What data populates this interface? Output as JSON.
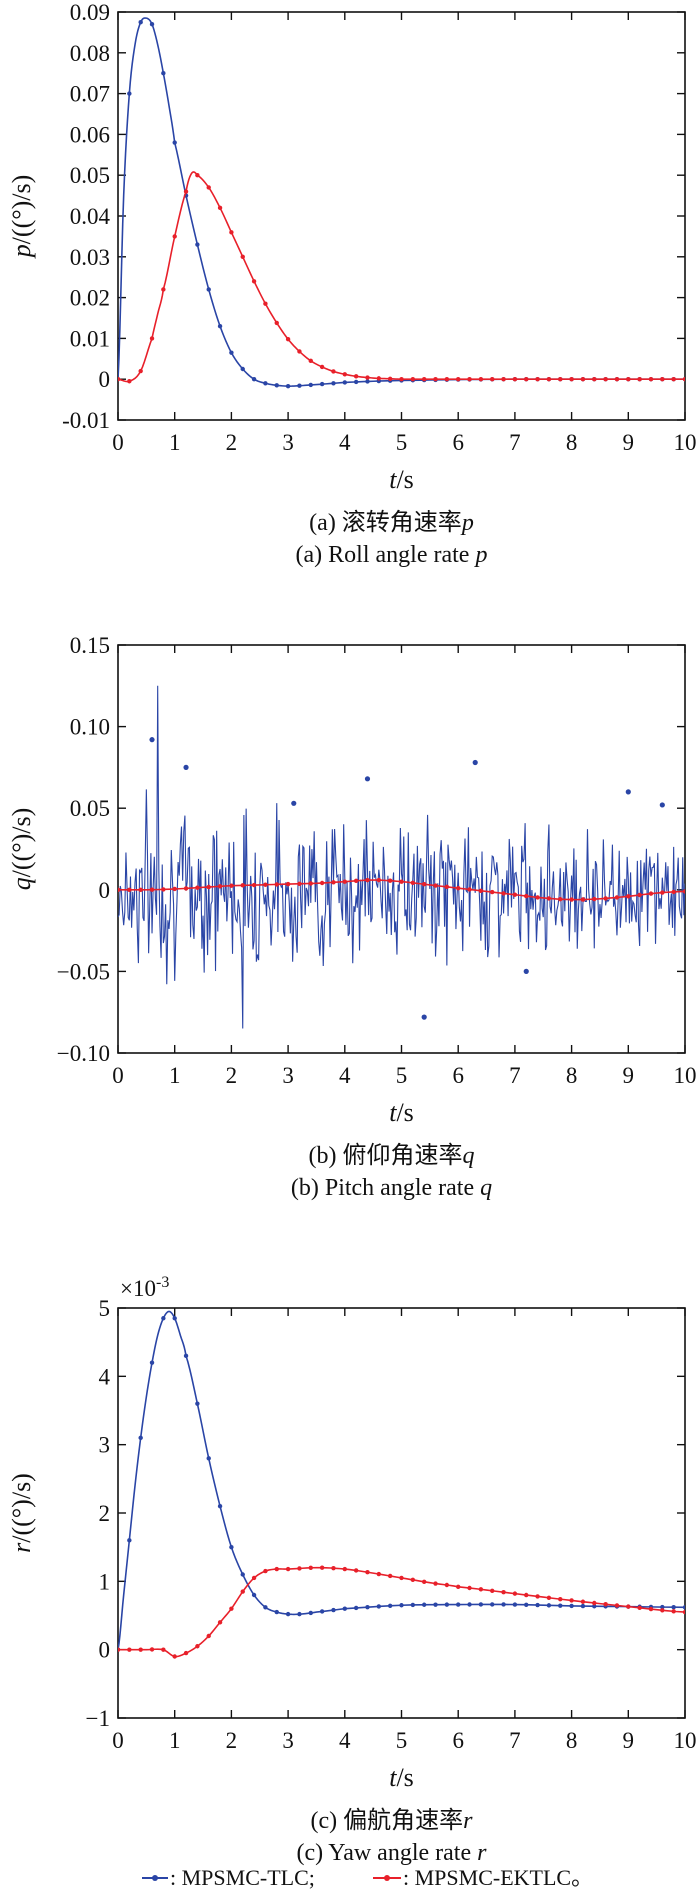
{
  "colors": {
    "tlc": "#2a45a6",
    "ektlc": "#e8202a",
    "axis": "#111111"
  },
  "legend": {
    "tlc_label": ": MPSMC-TLC;",
    "ektlc_label": ": MPSMC-EKTLC。"
  },
  "chart_data": [
    {
      "type": "line",
      "xlabel": "t/s",
      "ylabel": "p/((°)/s)",
      "caption_cn": "(a) 滚转角速率p",
      "caption_en": "(a) Roll angle rate p",
      "xlim": [
        0,
        10
      ],
      "ylim": [
        -0.01,
        0.09
      ],
      "xticks": [
        "0",
        "1",
        "2",
        "3",
        "4",
        "5",
        "6",
        "7",
        "8",
        "9",
        "10"
      ],
      "yticks": [
        "-0.01",
        "0",
        "0.01",
        "0.02",
        "0.03",
        "0.04",
        "0.05",
        "0.06",
        "0.07",
        "0.08",
        "0.09"
      ],
      "series": [
        {
          "name": "MPSMC-TLC",
          "x": [
            0,
            0.1,
            0.2,
            0.3,
            0.4,
            0.5,
            0.6,
            0.7,
            0.8,
            0.9,
            1.0,
            1.2,
            1.4,
            1.6,
            1.8,
            2.0,
            2.2,
            2.4,
            2.6,
            2.8,
            3.0,
            3.2,
            3.4,
            3.6,
            4.0,
            4.5,
            5,
            6,
            7,
            8,
            9,
            10
          ],
          "y": [
            0,
            0.045,
            0.07,
            0.082,
            0.0875,
            0.0885,
            0.087,
            0.082,
            0.075,
            0.067,
            0.058,
            0.045,
            0.033,
            0.022,
            0.013,
            0.0065,
            0.0025,
            0.0,
            -0.001,
            -0.0015,
            -0.0017,
            -0.0016,
            -0.0014,
            -0.0012,
            -0.0008,
            -0.0005,
            -0.0003,
            -0.0001,
            0,
            0,
            0,
            0
          ]
        },
        {
          "name": "MPSMC-EKTLC",
          "x": [
            0,
            0.2,
            0.4,
            0.6,
            0.7,
            0.8,
            1.0,
            1.2,
            1.3,
            1.4,
            1.6,
            1.8,
            2.0,
            2.2,
            2.4,
            2.6,
            2.8,
            3.0,
            3.2,
            3.4,
            3.6,
            3.8,
            4.0,
            4.2,
            4.4,
            4.6,
            4.8,
            5.0,
            5.5,
            6,
            7,
            8,
            9,
            10
          ],
          "y": [
            0,
            -0.0005,
            0.002,
            0.01,
            0.016,
            0.022,
            0.035,
            0.046,
            0.0505,
            0.05,
            0.047,
            0.042,
            0.036,
            0.03,
            0.024,
            0.0185,
            0.0138,
            0.0098,
            0.0068,
            0.0045,
            0.003,
            0.0019,
            0.0012,
            0.0007,
            0.0004,
            0.0002,
            0.0001,
            0.0,
            0,
            0,
            0,
            0,
            0,
            0
          ]
        }
      ]
    },
    {
      "type": "line",
      "xlabel": "t/s",
      "ylabel": "q/((°)/s)",
      "caption_cn": "(b) 俯仰角速率q",
      "caption_en": "(b) Pitch angle rate q",
      "xlim": [
        0,
        10
      ],
      "ylim": [
        -0.1,
        0.15
      ],
      "xticks": [
        "0",
        "1",
        "2",
        "3",
        "4",
        "5",
        "6",
        "7",
        "8",
        "9",
        "10"
      ],
      "yticks": [
        "−0.10",
        "−0.05",
        "0",
        "0.05",
        "0.10",
        "0.15"
      ],
      "series": [
        {
          "name": "MPSMC-TLC",
          "noise": {
            "t0": 0,
            "t1": 10,
            "samples": 500,
            "amp_start": 0.075,
            "amp_end": 0.045,
            "seed": 7,
            "peak": 0.125,
            "trough": -0.085
          }
        },
        {
          "name": "MPSMC-EKTLC",
          "x": [
            0,
            0.5,
            1.0,
            1.5,
            2.0,
            2.5,
            3.0,
            3.5,
            4.0,
            4.5,
            5.0,
            5.5,
            6.0,
            6.5,
            7.0,
            7.5,
            8.0,
            8.5,
            9.0,
            9.5,
            10
          ],
          "y": [
            0,
            0,
            0.0005,
            0.0015,
            0.0025,
            0.003,
            0.0035,
            0.004,
            0.005,
            0.006,
            0.005,
            0.003,
            0.001,
            -0.001,
            -0.003,
            -0.005,
            -0.006,
            -0.0055,
            -0.004,
            -0.002,
            -0.001
          ]
        }
      ]
    },
    {
      "type": "line",
      "xlabel": "t/s",
      "ylabel": "r/((°)/s)",
      "multiplier": "×10^-3",
      "caption_cn": "(c) 偏航角速率r",
      "caption_en": "(c) Yaw angle rate r",
      "xlim": [
        0,
        10
      ],
      "ylim": [
        -1,
        5
      ],
      "xticks": [
        "0",
        "1",
        "2",
        "3",
        "4",
        "5",
        "6",
        "7",
        "8",
        "9",
        "10"
      ],
      "yticks": [
        "−1",
        "0",
        "1",
        "2",
        "3",
        "4",
        "5"
      ],
      "series": [
        {
          "name": "MPSMC-TLC",
          "x": [
            0,
            0.1,
            0.2,
            0.3,
            0.4,
            0.5,
            0.6,
            0.7,
            0.8,
            0.9,
            1.0,
            1.1,
            1.2,
            1.4,
            1.6,
            1.8,
            2.0,
            2.2,
            2.4,
            2.6,
            2.8,
            3.0,
            3.2,
            3.5,
            4.0,
            5,
            6,
            7,
            8,
            9,
            10
          ],
          "y": [
            0,
            0.8,
            1.6,
            2.4,
            3.1,
            3.7,
            4.2,
            4.6,
            4.85,
            4.95,
            4.85,
            4.6,
            4.3,
            3.6,
            2.8,
            2.1,
            1.5,
            1.1,
            0.8,
            0.62,
            0.55,
            0.52,
            0.52,
            0.55,
            0.6,
            0.65,
            0.66,
            0.66,
            0.64,
            0.63,
            0.62
          ]
        },
        {
          "name": "MPSMC-EKTLC",
          "x": [
            0,
            0.5,
            0.8,
            1.0,
            1.2,
            1.4,
            1.6,
            1.8,
            2.0,
            2.2,
            2.4,
            2.6,
            2.8,
            3.0,
            3.5,
            4.0,
            4.5,
            5,
            5.5,
            6,
            7,
            8,
            9,
            10
          ],
          "y": [
            0,
            0,
            0,
            -0.1,
            -0.05,
            0.05,
            0.2,
            0.4,
            0.6,
            0.85,
            1.05,
            1.15,
            1.18,
            1.18,
            1.2,
            1.18,
            1.12,
            1.05,
            0.98,
            0.92,
            0.82,
            0.72,
            0.63,
            0.55
          ]
        }
      ]
    }
  ]
}
